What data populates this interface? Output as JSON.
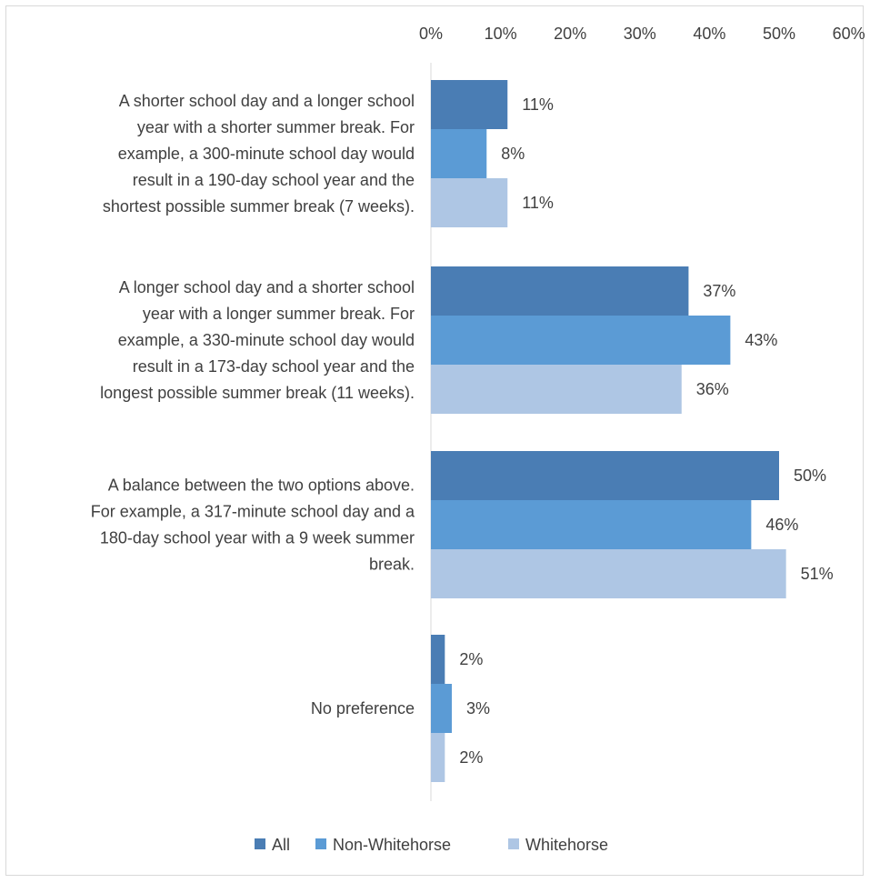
{
  "chart_data": {
    "type": "bar",
    "orientation": "horizontal",
    "xlim": [
      0,
      60
    ],
    "tick_step": 10,
    "tick_labels": [
      "0%",
      "10%",
      "20%",
      "30%",
      "40%",
      "50%",
      "60%"
    ],
    "axis_position": "top",
    "grid": false,
    "legend_position": "bottom",
    "categories": [
      [
        "A shorter school day and a longer school",
        "year with a shorter summer break. For",
        "example, a 300-minute school day would",
        "result in a 190-day school year and the",
        "shortest possible summer break (7 weeks)."
      ],
      [
        "A longer school day and a shorter school",
        "year with a longer summer break. For",
        "example, a 330-minute school day would",
        "result in a 173-day school year and the",
        "longest possible summer break (11 weeks)."
      ],
      [
        "A balance between the two options above.",
        "For example, a 317-minute school day and a",
        "180-day school year with a 9 week summer",
        "break."
      ],
      [
        "No preference"
      ]
    ],
    "series": [
      {
        "name": "All",
        "color": "#4a7db4",
        "values": [
          11,
          37,
          50,
          2
        ],
        "labels": [
          "11%",
          "37%",
          "50%",
          "2%"
        ]
      },
      {
        "name": "Non-Whitehorse",
        "color": "#5b9bd5",
        "values": [
          8,
          43,
          46,
          3
        ],
        "labels": [
          "8%",
          "43%",
          "46%",
          "3%"
        ]
      },
      {
        "name": "Whitehorse",
        "color": "#aec6e4",
        "values": [
          11,
          36,
          51,
          2
        ],
        "labels": [
          "11%",
          "36%",
          "51%",
          "2%"
        ]
      }
    ]
  }
}
